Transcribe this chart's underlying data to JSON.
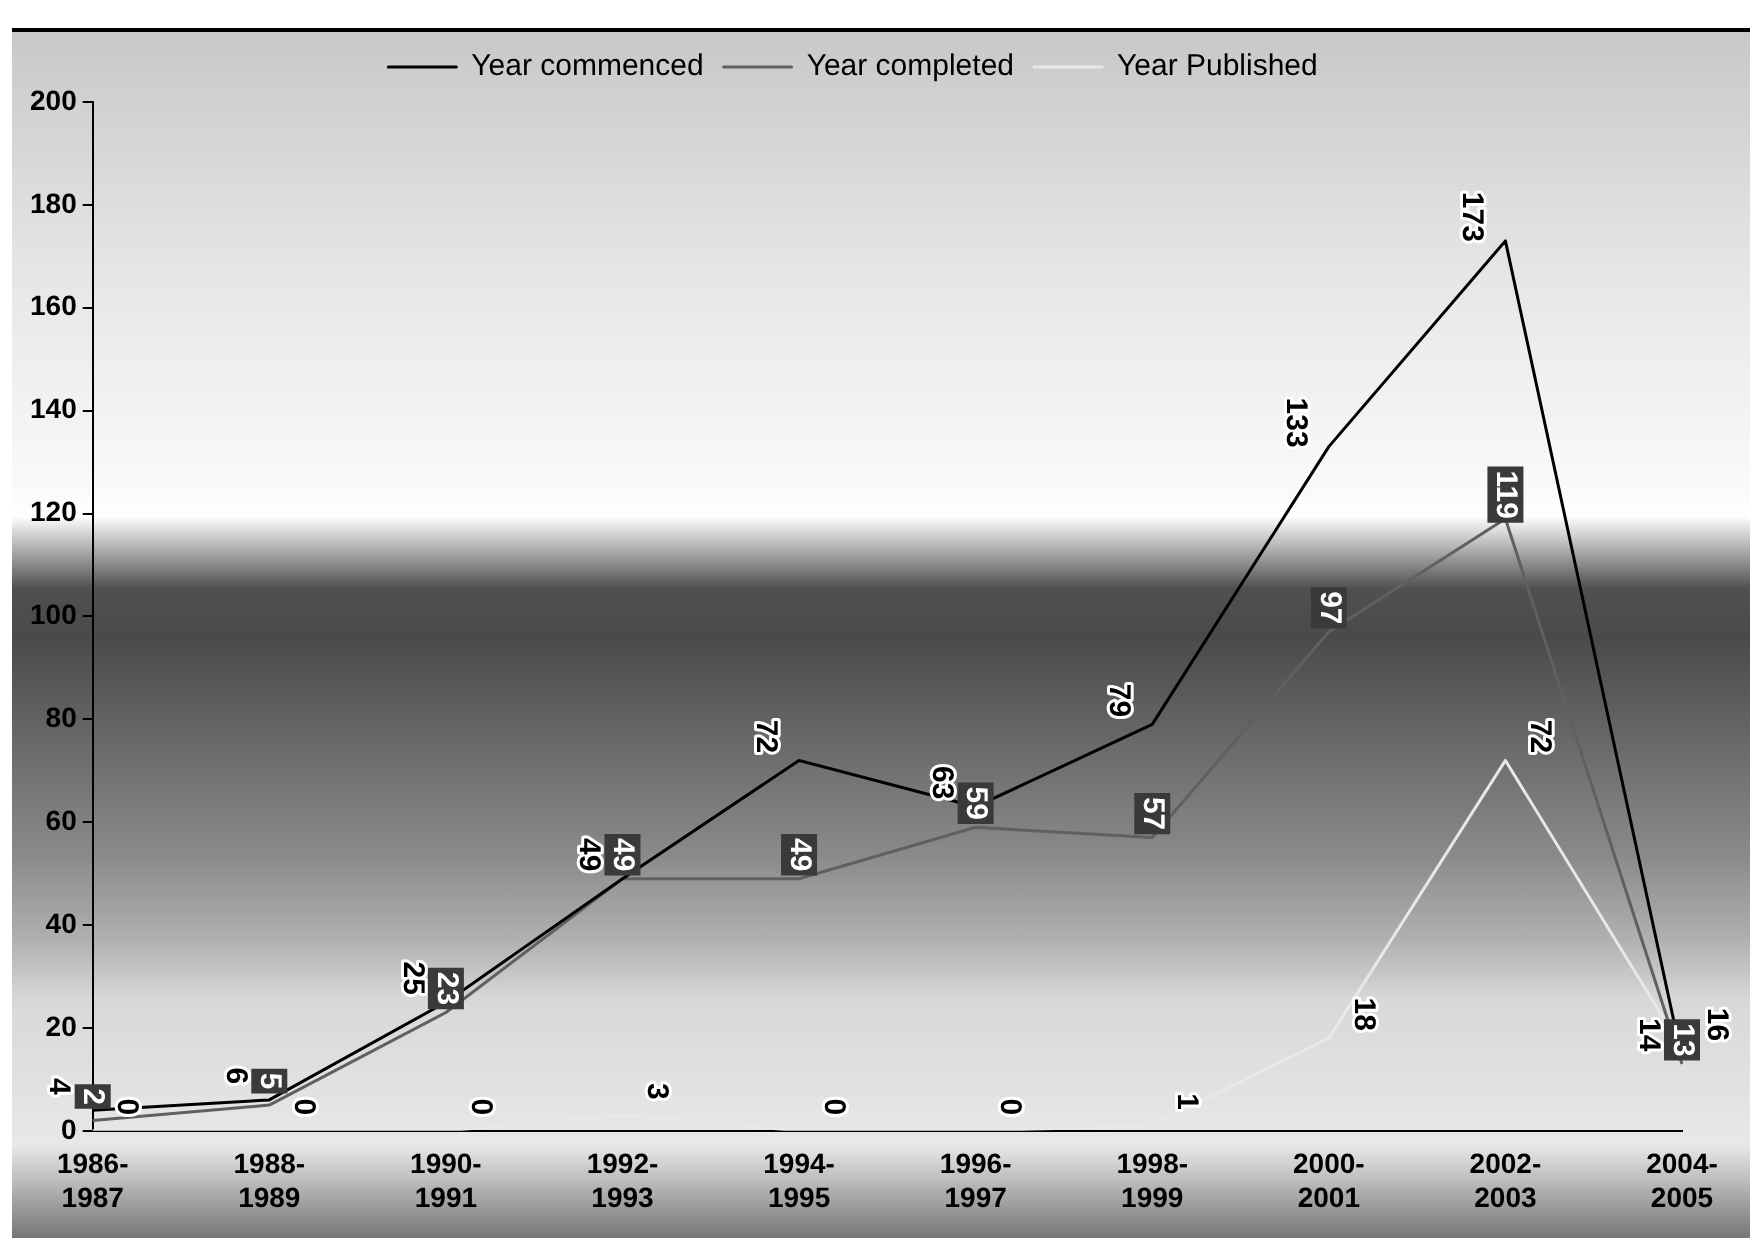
{
  "chart_data": {
    "type": "line",
    "categories": [
      "1986-\n1987",
      "1988-\n1989",
      "1990-\n1991",
      "1992-\n1993",
      "1994-\n1995",
      "1996-\n1997",
      "1998-\n1999",
      "2000-\n2001",
      "2002-\n2003",
      "2004-\n2005"
    ],
    "series": [
      {
        "name": "Year commenced",
        "color": "#000000",
        "values": [
          4,
          6,
          25,
          49,
          72,
          63,
          79,
          133,
          173,
          14
        ]
      },
      {
        "name": "Year completed",
        "color": "#606060",
        "values": [
          2,
          5,
          23,
          49,
          49,
          59,
          57,
          97,
          119,
          13
        ]
      },
      {
        "name": "Year Published",
        "color": "#e8e8e8",
        "values": [
          0,
          0,
          0,
          3,
          0,
          0,
          1,
          18,
          72,
          16
        ]
      }
    ],
    "ylim": [
      0,
      200
    ],
    "yticks": [
      0,
      20,
      40,
      60,
      80,
      100,
      120,
      140,
      160,
      180,
      200
    ],
    "grid": false,
    "legend": "top",
    "marker": "none",
    "data_labels": true
  }
}
